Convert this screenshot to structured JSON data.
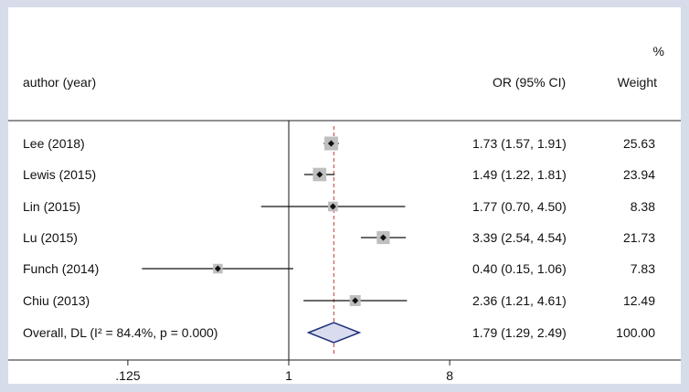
{
  "header": {
    "author_col": "author (year)",
    "or_col": "OR (95% CI)",
    "weight_pct": "%",
    "weight_col": "Weight"
  },
  "chart_data": {
    "type": "forest",
    "x_scale": "log",
    "x_ticks": [
      {
        "value": 0.125,
        "label": ".125"
      },
      {
        "value": 1,
        "label": "1"
      },
      {
        "value": 8,
        "label": "8"
      }
    ],
    "null_line": 1,
    "overall_line": 1.79,
    "marker_color": "#bfbfbf",
    "diamond_fill": "#d8dcee",
    "diamond_stroke": "#1f2f7a",
    "ref_line_color": "#c0392b",
    "studies": [
      {
        "label": "Lee (2018)",
        "or": 1.73,
        "lo": 1.57,
        "hi": 1.91,
        "or_text": "1.73 (1.57, 1.91)",
        "weight": 25.63,
        "weight_text": "25.63"
      },
      {
        "label": "Lewis (2015)",
        "or": 1.49,
        "lo": 1.22,
        "hi": 1.81,
        "or_text": "1.49 (1.22, 1.81)",
        "weight": 23.94,
        "weight_text": "23.94"
      },
      {
        "label": "Lin (2015)",
        "or": 1.77,
        "lo": 0.7,
        "hi": 4.5,
        "or_text": "1.77 (0.70, 4.50)",
        "weight": 8.38,
        "weight_text": "8.38"
      },
      {
        "label": "Lu (2015)",
        "or": 3.39,
        "lo": 2.54,
        "hi": 4.54,
        "or_text": "3.39 (2.54, 4.54)",
        "weight": 21.73,
        "weight_text": "21.73"
      },
      {
        "label": "Funch (2014)",
        "or": 0.4,
        "lo": 0.15,
        "hi": 1.06,
        "or_text": "0.40 (0.15, 1.06)",
        "weight": 7.83,
        "weight_text": "7.83"
      },
      {
        "label": "Chiu (2013)",
        "or": 2.36,
        "lo": 1.21,
        "hi": 4.61,
        "or_text": "2.36 (1.21, 4.61)",
        "weight": 12.49,
        "weight_text": "12.49"
      }
    ],
    "overall": {
      "label": "Overall, DL (I² = 84.4%, p = 0.000)",
      "or": 1.79,
      "lo": 1.29,
      "hi": 2.49,
      "or_text": "1.79 (1.29, 2.49)",
      "weight_text": "100.00"
    }
  }
}
